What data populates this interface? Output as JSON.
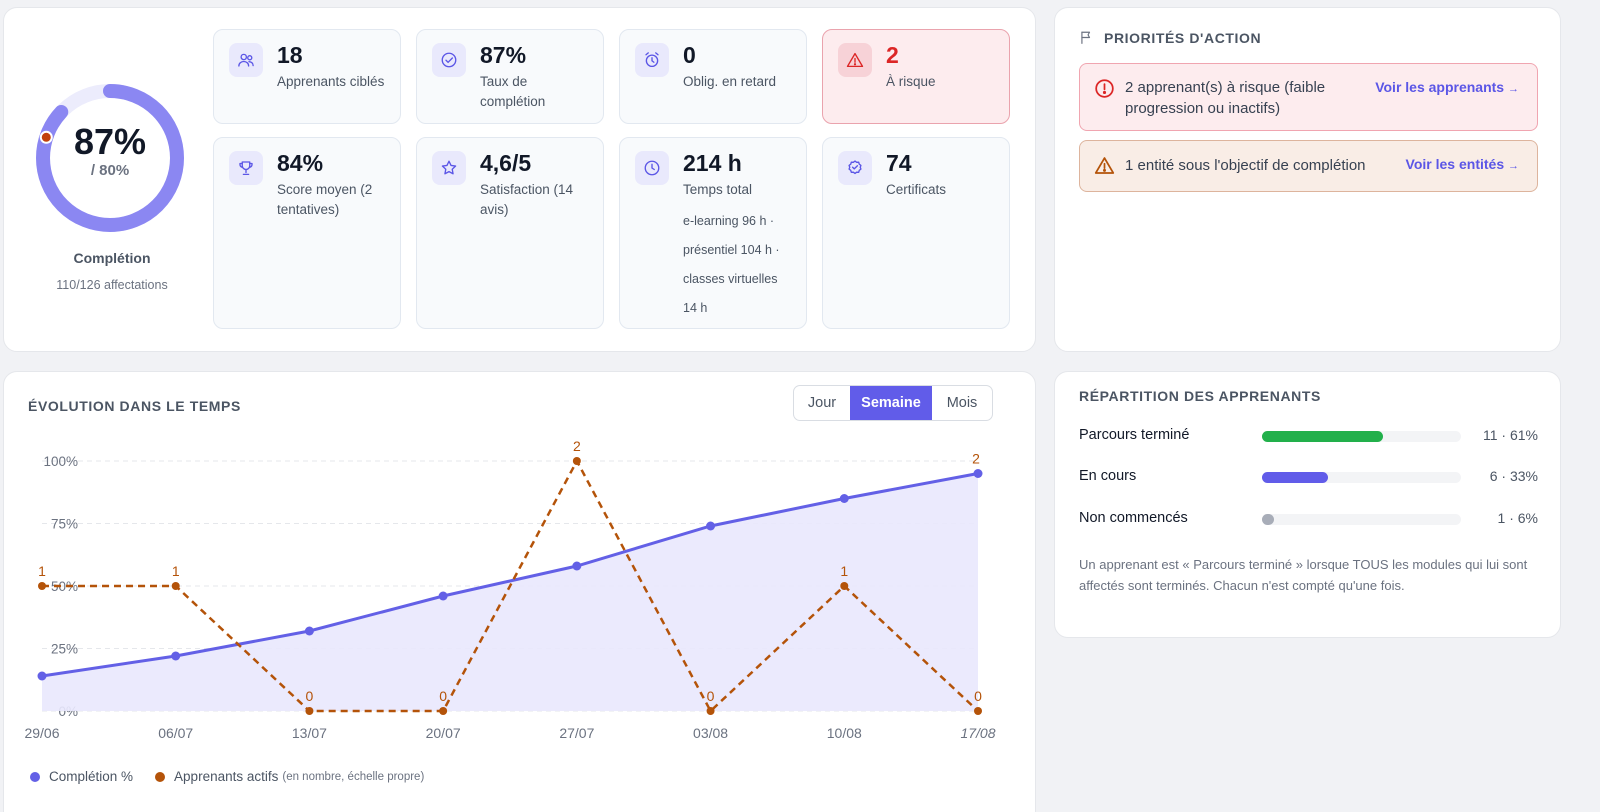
{
  "completion": {
    "percent_label": "87%",
    "target_label": "/ 80%",
    "label": "Complétion",
    "sub": "110/126 affectations",
    "value_pct": 87,
    "target_pct": 80,
    "ring_color": "#8b87f2",
    "target_color": "#c2410c"
  },
  "kpis": [
    {
      "value": "18",
      "label": "Apprenants ciblés",
      "icon": "users-icon"
    },
    {
      "value": "87%",
      "label": "Taux de complétion",
      "icon": "check-circle-icon"
    },
    {
      "value": "0",
      "label": "Oblig. en retard",
      "icon": "alarm-clock-icon"
    },
    {
      "value": "2",
      "label": "À risque",
      "icon": "warning-triangle-icon",
      "danger": true
    },
    {
      "value": "84%",
      "label": "Score moyen (2 tentatives)",
      "icon": "trophy-icon"
    },
    {
      "value": "4,6/5",
      "label": "Satisfaction (14 avis)",
      "icon": "star-icon"
    },
    {
      "value": "214 h",
      "label": "Temps total",
      "extra": "e-learning 96 h · présentiel 104 h · classes virtuelles 14 h",
      "icon": "clock-icon"
    },
    {
      "value": "74",
      "label": "Certificats",
      "icon": "badge-icon"
    }
  ],
  "priorities": {
    "title": "PRIORITÉS D'ACTION",
    "items": [
      {
        "text": "2 apprenant(s) à risque (faible progression ou inactifs)",
        "link": "Voir les apprenants",
        "level": "danger"
      },
      {
        "text": "1 entité sous l'objectif de complétion",
        "link": "Voir les entités",
        "level": "warning"
      }
    ]
  },
  "evolution": {
    "title": "ÉVOLUTION DANS LE TEMPS",
    "periods": [
      "Jour",
      "Semaine",
      "Mois"
    ],
    "active_period": "Semaine",
    "legend": {
      "completion": "Complétion %",
      "actifs": "Apprenants actifs",
      "actifs_note": "(en nombre, échelle propre)"
    }
  },
  "chart_data": {
    "type": "line",
    "x": [
      "29/06",
      "06/07",
      "13/07",
      "20/07",
      "27/07",
      "03/08",
      "10/08",
      "17/08"
    ],
    "y_ticks": [
      "0%",
      "25%",
      "50%",
      "75%",
      "100%"
    ],
    "ylim": [
      0,
      100
    ],
    "series": [
      {
        "name": "Complétion %",
        "values": [
          14,
          22,
          32,
          46,
          58,
          74,
          85,
          95
        ],
        "color": "#6360e6",
        "style": "solid",
        "area": true
      },
      {
        "name": "Apprenants actifs",
        "values": [
          1,
          1,
          0,
          0,
          2,
          0,
          1,
          0
        ],
        "color": "#b45309",
        "style": "dashed",
        "scale_max": 2,
        "labels": [
          "1",
          "1",
          "0",
          "0",
          "2",
          "0",
          "1",
          "0"
        ]
      }
    ],
    "end_label": "2",
    "grid": true
  },
  "repartition": {
    "title": "RÉPARTITION DES APPRENANTS",
    "rows": [
      {
        "label": "Parcours terminé",
        "value": "11 · 61%",
        "pct": 61,
        "color": "#22b04b"
      },
      {
        "label": "En cours",
        "value": "6 · 33%",
        "pct": 33,
        "color": "#615ce9"
      },
      {
        "label": "Non commencés",
        "value": "1 · 6%",
        "pct": 6,
        "color": "#a8adb8"
      }
    ],
    "note": "Un apprenant est « Parcours terminé » lorsque TOUS les modules qui lui sont affectés sont terminés. Chacun n'est compté qu'une fois."
  }
}
